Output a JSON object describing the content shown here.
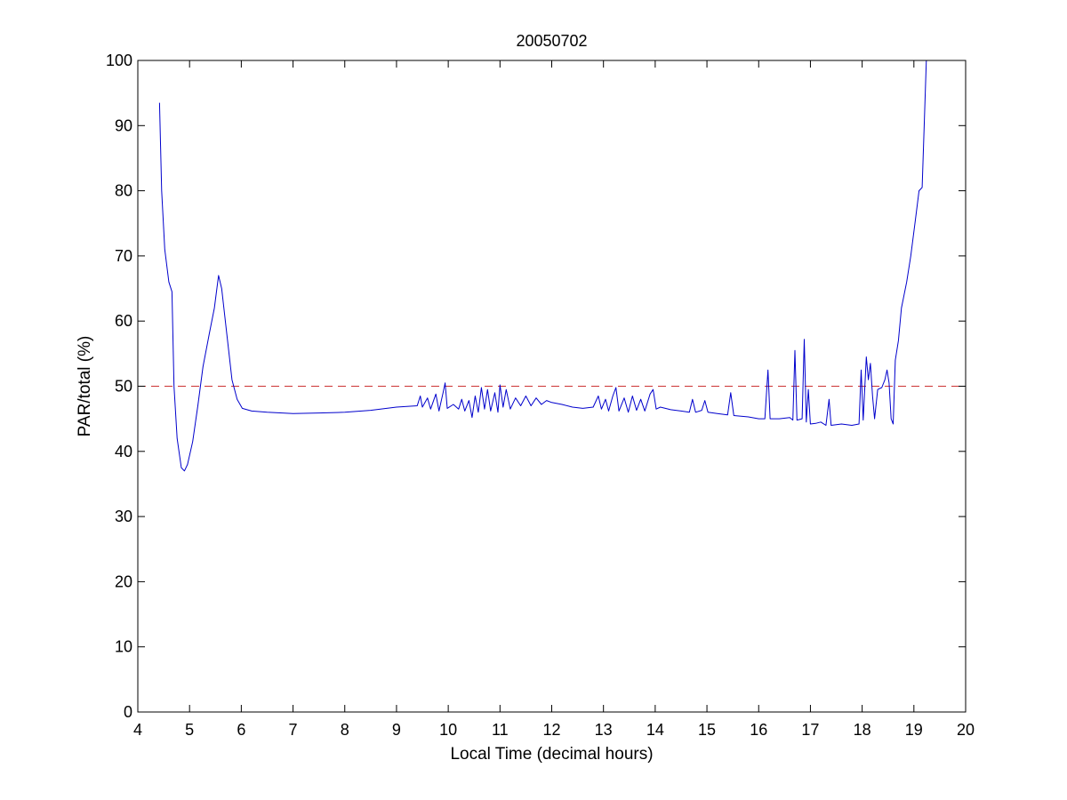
{
  "chart_data": {
    "type": "line",
    "title": "20050702",
    "xlabel": "Local Time (decimal hours)",
    "ylabel": "PAR/total (%)",
    "xlim": [
      4,
      20
    ],
    "ylim": [
      0,
      100
    ],
    "xticks": [
      "4",
      "5",
      "6",
      "7",
      "8",
      "9",
      "10",
      "11",
      "12",
      "13",
      "14",
      "15",
      "16",
      "17",
      "18",
      "19",
      "20"
    ],
    "yticks": [
      "0",
      "10",
      "20",
      "30",
      "40",
      "50",
      "60",
      "70",
      "80",
      "90",
      "100"
    ],
    "grid": false,
    "legend": "none",
    "reference_line": {
      "y": 50,
      "style": "dashed",
      "color": "#cc3333"
    },
    "series": [
      {
        "color": "#0000cc",
        "points": [
          [
            4.42,
            93.5
          ],
          [
            4.46,
            80
          ],
          [
            4.52,
            71
          ],
          [
            4.6,
            66
          ],
          [
            4.66,
            64.5
          ],
          [
            4.7,
            50
          ],
          [
            4.76,
            42
          ],
          [
            4.84,
            37.5
          ],
          [
            4.9,
            37
          ],
          [
            4.96,
            38
          ],
          [
            5.06,
            41.5
          ],
          [
            5.16,
            47
          ],
          [
            5.26,
            53
          ],
          [
            5.38,
            58
          ],
          [
            5.48,
            62
          ],
          [
            5.56,
            67
          ],
          [
            5.62,
            65
          ],
          [
            5.72,
            58
          ],
          [
            5.82,
            51
          ],
          [
            5.92,
            48
          ],
          [
            6.02,
            46.6
          ],
          [
            6.2,
            46.2
          ],
          [
            6.5,
            46.0
          ],
          [
            7.0,
            45.8
          ],
          [
            7.5,
            45.9
          ],
          [
            8.0,
            46.0
          ],
          [
            8.5,
            46.3
          ],
          [
            9.0,
            46.8
          ],
          [
            9.4,
            47.0
          ],
          [
            9.46,
            48.5
          ],
          [
            9.5,
            46.8
          ],
          [
            9.6,
            48.2
          ],
          [
            9.66,
            46.5
          ],
          [
            9.76,
            48.8
          ],
          [
            9.82,
            46.2
          ],
          [
            9.9,
            49.0
          ],
          [
            9.94,
            50.5
          ],
          [
            9.98,
            46.6
          ],
          [
            10.1,
            47.2
          ],
          [
            10.2,
            46.5
          ],
          [
            10.26,
            48.0
          ],
          [
            10.32,
            46.2
          ],
          [
            10.4,
            47.8
          ],
          [
            10.46,
            45.2
          ],
          [
            10.52,
            48.5
          ],
          [
            10.58,
            46.0
          ],
          [
            10.64,
            49.8
          ],
          [
            10.7,
            46.5
          ],
          [
            10.76,
            49.5
          ],
          [
            10.82,
            46.2
          ],
          [
            10.9,
            49.0
          ],
          [
            10.96,
            46.0
          ],
          [
            11.0,
            50.2
          ],
          [
            11.06,
            46.8
          ],
          [
            11.12,
            49.5
          ],
          [
            11.2,
            46.5
          ],
          [
            11.3,
            48.2
          ],
          [
            11.4,
            47.0
          ],
          [
            11.5,
            48.5
          ],
          [
            11.6,
            47.0
          ],
          [
            11.7,
            48.2
          ],
          [
            11.8,
            47.2
          ],
          [
            11.9,
            47.8
          ],
          [
            12.0,
            47.5
          ],
          [
            12.2,
            47.2
          ],
          [
            12.4,
            46.8
          ],
          [
            12.6,
            46.6
          ],
          [
            12.8,
            46.8
          ],
          [
            12.9,
            48.5
          ],
          [
            12.96,
            46.5
          ],
          [
            13.04,
            48.0
          ],
          [
            13.1,
            46.2
          ],
          [
            13.18,
            48.5
          ],
          [
            13.24,
            49.8
          ],
          [
            13.3,
            46.2
          ],
          [
            13.4,
            48.2
          ],
          [
            13.48,
            46.0
          ],
          [
            13.56,
            48.5
          ],
          [
            13.64,
            46.3
          ],
          [
            13.72,
            48.0
          ],
          [
            13.8,
            46.2
          ],
          [
            13.9,
            48.8
          ],
          [
            13.96,
            49.5
          ],
          [
            14.02,
            46.5
          ],
          [
            14.1,
            46.8
          ],
          [
            14.3,
            46.4
          ],
          [
            14.5,
            46.2
          ],
          [
            14.66,
            46.0
          ],
          [
            14.72,
            48.0
          ],
          [
            14.78,
            46.0
          ],
          [
            14.9,
            46.3
          ],
          [
            14.96,
            47.8
          ],
          [
            15.02,
            46.0
          ],
          [
            15.2,
            45.8
          ],
          [
            15.4,
            45.6
          ],
          [
            15.46,
            49.0
          ],
          [
            15.52,
            45.5
          ],
          [
            15.8,
            45.3
          ],
          [
            16.0,
            45.0
          ],
          [
            16.12,
            45.0
          ],
          [
            16.18,
            52.5
          ],
          [
            16.22,
            45.0
          ],
          [
            16.4,
            45.0
          ],
          [
            16.6,
            45.2
          ],
          [
            16.66,
            44.8
          ],
          [
            16.7,
            55.5
          ],
          [
            16.74,
            44.8
          ],
          [
            16.84,
            45.0
          ],
          [
            16.88,
            57.2
          ],
          [
            16.92,
            44.5
          ],
          [
            16.96,
            49.5
          ],
          [
            17.0,
            44.2
          ],
          [
            17.1,
            44.3
          ],
          [
            17.2,
            44.5
          ],
          [
            17.3,
            44.0
          ],
          [
            17.36,
            48.0
          ],
          [
            17.4,
            44.0
          ],
          [
            17.6,
            44.2
          ],
          [
            17.8,
            44.0
          ],
          [
            17.94,
            44.2
          ],
          [
            17.98,
            52.5
          ],
          [
            18.02,
            44.8
          ],
          [
            18.08,
            54.5
          ],
          [
            18.12,
            51.0
          ],
          [
            18.16,
            53.5
          ],
          [
            18.2,
            48.5
          ],
          [
            18.24,
            45.0
          ],
          [
            18.3,
            49.5
          ],
          [
            18.38,
            49.8
          ],
          [
            18.44,
            51.0
          ],
          [
            18.48,
            52.5
          ],
          [
            18.52,
            50.5
          ],
          [
            18.56,
            45.0
          ],
          [
            18.6,
            44.2
          ],
          [
            18.64,
            54.0
          ],
          [
            18.7,
            57.0
          ],
          [
            18.76,
            62.0
          ],
          [
            18.86,
            66.0
          ],
          [
            18.94,
            70.0
          ],
          [
            19.02,
            75.0
          ],
          [
            19.1,
            80.0
          ],
          [
            19.16,
            80.5
          ],
          [
            19.2,
            90.0
          ],
          [
            19.24,
            100
          ]
        ]
      }
    ]
  }
}
